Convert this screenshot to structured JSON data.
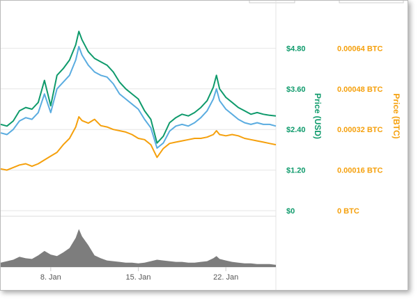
{
  "chart_data": {
    "type": "line",
    "x_axis": {
      "type": "date",
      "range": [
        "2018-01-04",
        "2018-01-26"
      ],
      "tick_labels": [
        {
          "x": "2018-01-08",
          "label": "8. Jan"
        },
        {
          "x": "2018-01-15",
          "label": "15. Jan"
        },
        {
          "x": "2018-01-22",
          "label": "22. Jan"
        }
      ]
    },
    "y_axis_usd": {
      "title": "Price (USD)",
      "range": [
        0,
        6
      ],
      "ticks": [
        0,
        1.2,
        2.4,
        3.6,
        4.8
      ],
      "tick_labels": [
        "$0",
        "$1.20",
        "$2.40",
        "$3.60",
        "$4.80"
      ],
      "color": "#0e9a6b"
    },
    "y_axis_btc": {
      "title": "Price (BTC)",
      "range": [
        0,
        0.0008
      ],
      "ticks": [
        0,
        0.00016,
        0.00032,
        0.00048,
        0.00064
      ],
      "tick_labels": [
        "0 BTC",
        "0.00016 BTC",
        "0.00032 BTC",
        "0.00048 BTC",
        "0.00064 BTC"
      ],
      "color": "#f5a00c"
    },
    "volume_range": [
      0,
      60
    ],
    "grid": true,
    "series": [
      {
        "color": "#0e9a6b",
        "axis": "usd",
        "points": [
          [
            "2018-01-04",
            2.55
          ],
          [
            "2018-01-04T12:00",
            2.5
          ],
          [
            "2018-01-05",
            2.65
          ],
          [
            "2018-01-05T12:00",
            2.95
          ],
          [
            "2018-01-06",
            3.05
          ],
          [
            "2018-01-06T12:00",
            3.0
          ],
          [
            "2018-01-07",
            3.2
          ],
          [
            "2018-01-07T12:00",
            3.85
          ],
          [
            "2018-01-08",
            3.1
          ],
          [
            "2018-01-08T12:00",
            4.0
          ],
          [
            "2018-01-09",
            4.2
          ],
          [
            "2018-01-09T12:00",
            4.45
          ],
          [
            "2018-01-10",
            4.9
          ],
          [
            "2018-01-10T06:00",
            5.3
          ],
          [
            "2018-01-10T12:00",
            5.05
          ],
          [
            "2018-01-11",
            4.7
          ],
          [
            "2018-01-11T12:00",
            4.5
          ],
          [
            "2018-01-12",
            4.4
          ],
          [
            "2018-01-12T12:00",
            4.3
          ],
          [
            "2018-01-13",
            4.1
          ],
          [
            "2018-01-13T12:00",
            3.8
          ],
          [
            "2018-01-14",
            3.6
          ],
          [
            "2018-01-14T12:00",
            3.45
          ],
          [
            "2018-01-15",
            3.3
          ],
          [
            "2018-01-15T12:00",
            2.95
          ],
          [
            "2018-01-16",
            2.7
          ],
          [
            "2018-01-16T12:00",
            2.0
          ],
          [
            "2018-01-17",
            2.2
          ],
          [
            "2018-01-17T12:00",
            2.6
          ],
          [
            "2018-01-18",
            2.75
          ],
          [
            "2018-01-18T12:00",
            2.85
          ],
          [
            "2018-01-19",
            2.8
          ],
          [
            "2018-01-19T12:00",
            2.9
          ],
          [
            "2018-01-20",
            3.05
          ],
          [
            "2018-01-20T12:00",
            3.25
          ],
          [
            "2018-01-21",
            3.65
          ],
          [
            "2018-01-21T06:00",
            4.0
          ],
          [
            "2018-01-21T12:00",
            3.6
          ],
          [
            "2018-01-22",
            3.35
          ],
          [
            "2018-01-22T12:00",
            3.2
          ],
          [
            "2018-01-23",
            3.05
          ],
          [
            "2018-01-23T12:00",
            2.95
          ],
          [
            "2018-01-24",
            2.85
          ],
          [
            "2018-01-24T12:00",
            2.9
          ],
          [
            "2018-01-25",
            2.85
          ],
          [
            "2018-01-25T12:00",
            2.82
          ],
          [
            "2018-01-26",
            2.8
          ]
        ]
      },
      {
        "color": "#5aace0",
        "axis": "usd",
        "points": [
          [
            "2018-01-04",
            2.3
          ],
          [
            "2018-01-04T12:00",
            2.25
          ],
          [
            "2018-01-05",
            2.4
          ],
          [
            "2018-01-05T12:00",
            2.65
          ],
          [
            "2018-01-06",
            2.75
          ],
          [
            "2018-01-06T12:00",
            2.7
          ],
          [
            "2018-01-07",
            2.9
          ],
          [
            "2018-01-07T12:00",
            3.45
          ],
          [
            "2018-01-08",
            2.9
          ],
          [
            "2018-01-08T12:00",
            3.6
          ],
          [
            "2018-01-09",
            3.8
          ],
          [
            "2018-01-09T12:00",
            4.0
          ],
          [
            "2018-01-10",
            4.45
          ],
          [
            "2018-01-10T06:00",
            4.85
          ],
          [
            "2018-01-10T12:00",
            4.6
          ],
          [
            "2018-01-11",
            4.3
          ],
          [
            "2018-01-11T12:00",
            4.1
          ],
          [
            "2018-01-12",
            4.0
          ],
          [
            "2018-01-12T12:00",
            3.95
          ],
          [
            "2018-01-13",
            3.75
          ],
          [
            "2018-01-13T12:00",
            3.45
          ],
          [
            "2018-01-14",
            3.3
          ],
          [
            "2018-01-14T12:00",
            3.15
          ],
          [
            "2018-01-15",
            3.0
          ],
          [
            "2018-01-15T12:00",
            2.7
          ],
          [
            "2018-01-16",
            2.45
          ],
          [
            "2018-01-16T12:00",
            1.85
          ],
          [
            "2018-01-17",
            2.0
          ],
          [
            "2018-01-17T12:00",
            2.35
          ],
          [
            "2018-01-18",
            2.5
          ],
          [
            "2018-01-18T12:00",
            2.55
          ],
          [
            "2018-01-19",
            2.5
          ],
          [
            "2018-01-19T12:00",
            2.6
          ],
          [
            "2018-01-20",
            2.75
          ],
          [
            "2018-01-20T12:00",
            2.95
          ],
          [
            "2018-01-21",
            3.3
          ],
          [
            "2018-01-21T06:00",
            3.6
          ],
          [
            "2018-01-21T12:00",
            3.25
          ],
          [
            "2018-01-22",
            3.0
          ],
          [
            "2018-01-22T12:00",
            2.85
          ],
          [
            "2018-01-23",
            2.7
          ],
          [
            "2018-01-23T12:00",
            2.6
          ],
          [
            "2018-01-24",
            2.55
          ],
          [
            "2018-01-24T12:00",
            2.6
          ],
          [
            "2018-01-25",
            2.55
          ],
          [
            "2018-01-25T12:00",
            2.55
          ],
          [
            "2018-01-26",
            2.5
          ]
        ]
      },
      {
        "color": "#f5a00c",
        "axis": "btc",
        "points": [
          [
            "2018-01-04",
            0.000165
          ],
          [
            "2018-01-04T12:00",
            0.00016
          ],
          [
            "2018-01-05",
            0.00017
          ],
          [
            "2018-01-05T12:00",
            0.00018
          ],
          [
            "2018-01-06",
            0.000185
          ],
          [
            "2018-01-06T12:00",
            0.000175
          ],
          [
            "2018-01-07",
            0.000185
          ],
          [
            "2018-01-07T12:00",
            0.0002
          ],
          [
            "2018-01-08",
            0.000215
          ],
          [
            "2018-01-08T12:00",
            0.00023
          ],
          [
            "2018-01-09",
            0.00026
          ],
          [
            "2018-01-09T12:00",
            0.000285
          ],
          [
            "2018-01-10",
            0.00033
          ],
          [
            "2018-01-10T06:00",
            0.00037
          ],
          [
            "2018-01-10T12:00",
            0.000355
          ],
          [
            "2018-01-11",
            0.000345
          ],
          [
            "2018-01-11T12:00",
            0.00036
          ],
          [
            "2018-01-12",
            0.000335
          ],
          [
            "2018-01-12T12:00",
            0.00033
          ],
          [
            "2018-01-13",
            0.00032
          ],
          [
            "2018-01-13T12:00",
            0.000315
          ],
          [
            "2018-01-14",
            0.00031
          ],
          [
            "2018-01-14T12:00",
            0.0003
          ],
          [
            "2018-01-15",
            0.000285
          ],
          [
            "2018-01-15T12:00",
            0.00028
          ],
          [
            "2018-01-16",
            0.00026
          ],
          [
            "2018-01-16T12:00",
            0.00021
          ],
          [
            "2018-01-17",
            0.000245
          ],
          [
            "2018-01-17T12:00",
            0.000265
          ],
          [
            "2018-01-18",
            0.00027
          ],
          [
            "2018-01-18T12:00",
            0.000275
          ],
          [
            "2018-01-19",
            0.00028
          ],
          [
            "2018-01-19T12:00",
            0.000285
          ],
          [
            "2018-01-20",
            0.000285
          ],
          [
            "2018-01-20T12:00",
            0.00029
          ],
          [
            "2018-01-21",
            0.0003
          ],
          [
            "2018-01-21T06:00",
            0.000315
          ],
          [
            "2018-01-21T12:00",
            0.0003
          ],
          [
            "2018-01-22",
            0.000295
          ],
          [
            "2018-01-22T12:00",
            0.0003
          ],
          [
            "2018-01-23",
            0.000295
          ],
          [
            "2018-01-23T12:00",
            0.000285
          ],
          [
            "2018-01-24",
            0.00028
          ],
          [
            "2018-01-24T12:00",
            0.000275
          ],
          [
            "2018-01-25",
            0.00027
          ],
          [
            "2018-01-25T12:00",
            0.000265
          ],
          [
            "2018-01-26",
            0.00026
          ]
        ]
      }
    ],
    "volume": {
      "color": "#666666",
      "points": [
        [
          "2018-01-04",
          6
        ],
        [
          "2018-01-04T12:00",
          8
        ],
        [
          "2018-01-05",
          10
        ],
        [
          "2018-01-05T12:00",
          14
        ],
        [
          "2018-01-06",
          12
        ],
        [
          "2018-01-06T12:00",
          11
        ],
        [
          "2018-01-07",
          16
        ],
        [
          "2018-01-07T12:00",
          22
        ],
        [
          "2018-01-08",
          17
        ],
        [
          "2018-01-08T12:00",
          15
        ],
        [
          "2018-01-09",
          20
        ],
        [
          "2018-01-09T12:00",
          26
        ],
        [
          "2018-01-10",
          40
        ],
        [
          "2018-01-10T06:00",
          52
        ],
        [
          "2018-01-10T12:00",
          42
        ],
        [
          "2018-01-11",
          30
        ],
        [
          "2018-01-11T12:00",
          16
        ],
        [
          "2018-01-12",
          12
        ],
        [
          "2018-01-12T12:00",
          9
        ],
        [
          "2018-01-13",
          8
        ],
        [
          "2018-01-13T12:00",
          7
        ],
        [
          "2018-01-14",
          6
        ],
        [
          "2018-01-14T12:00",
          6
        ],
        [
          "2018-01-15",
          5
        ],
        [
          "2018-01-15T12:00",
          6
        ],
        [
          "2018-01-16",
          8
        ],
        [
          "2018-01-16T12:00",
          10
        ],
        [
          "2018-01-17",
          9
        ],
        [
          "2018-01-17T12:00",
          8
        ],
        [
          "2018-01-18",
          7
        ],
        [
          "2018-01-18T12:00",
          7
        ],
        [
          "2018-01-19",
          6
        ],
        [
          "2018-01-19T12:00",
          6
        ],
        [
          "2018-01-20",
          7
        ],
        [
          "2018-01-20T12:00",
          8
        ],
        [
          "2018-01-21",
          12
        ],
        [
          "2018-01-21T06:00",
          15
        ],
        [
          "2018-01-21T12:00",
          11
        ],
        [
          "2018-01-22",
          9
        ],
        [
          "2018-01-22T12:00",
          7
        ],
        [
          "2018-01-23",
          6
        ],
        [
          "2018-01-23T12:00",
          5
        ],
        [
          "2018-01-24",
          5
        ],
        [
          "2018-01-24T12:00",
          4
        ],
        [
          "2018-01-25",
          4
        ],
        [
          "2018-01-25T12:00",
          4
        ],
        [
          "2018-01-26",
          3
        ]
      ]
    }
  }
}
